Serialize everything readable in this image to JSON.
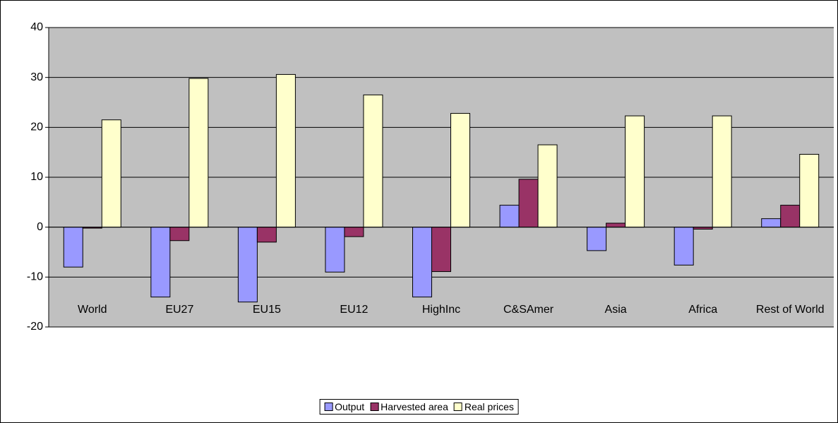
{
  "chart_data": {
    "type": "bar",
    "categories": [
      "World",
      "EU27",
      "EU15",
      "EU12",
      "HighInc",
      "C&SAmer",
      "Asia",
      "Africa",
      "Rest of World"
    ],
    "series": [
      {
        "name": "Output",
        "color": "#9999ff",
        "values": [
          -8,
          -14,
          -15,
          -9,
          -14,
          4.4,
          -4.7,
          -7.6,
          1.7
        ]
      },
      {
        "name": "Harvested area",
        "color": "#993366",
        "values": [
          -0.2,
          -2.7,
          -3,
          -1.9,
          -8.9,
          9.6,
          0.8,
          -0.4,
          4.4
        ]
      },
      {
        "name": "Real prices",
        "color": "#ffffcc",
        "values": [
          21.5,
          29.8,
          30.6,
          26.5,
          22.8,
          16.5,
          22.3,
          22.3,
          14.6
        ]
      }
    ],
    "ylim": [
      -20,
      40
    ],
    "yticks": [
      -20,
      -10,
      0,
      10,
      20,
      30,
      40
    ],
    "grid": true,
    "legend": "bottom"
  }
}
